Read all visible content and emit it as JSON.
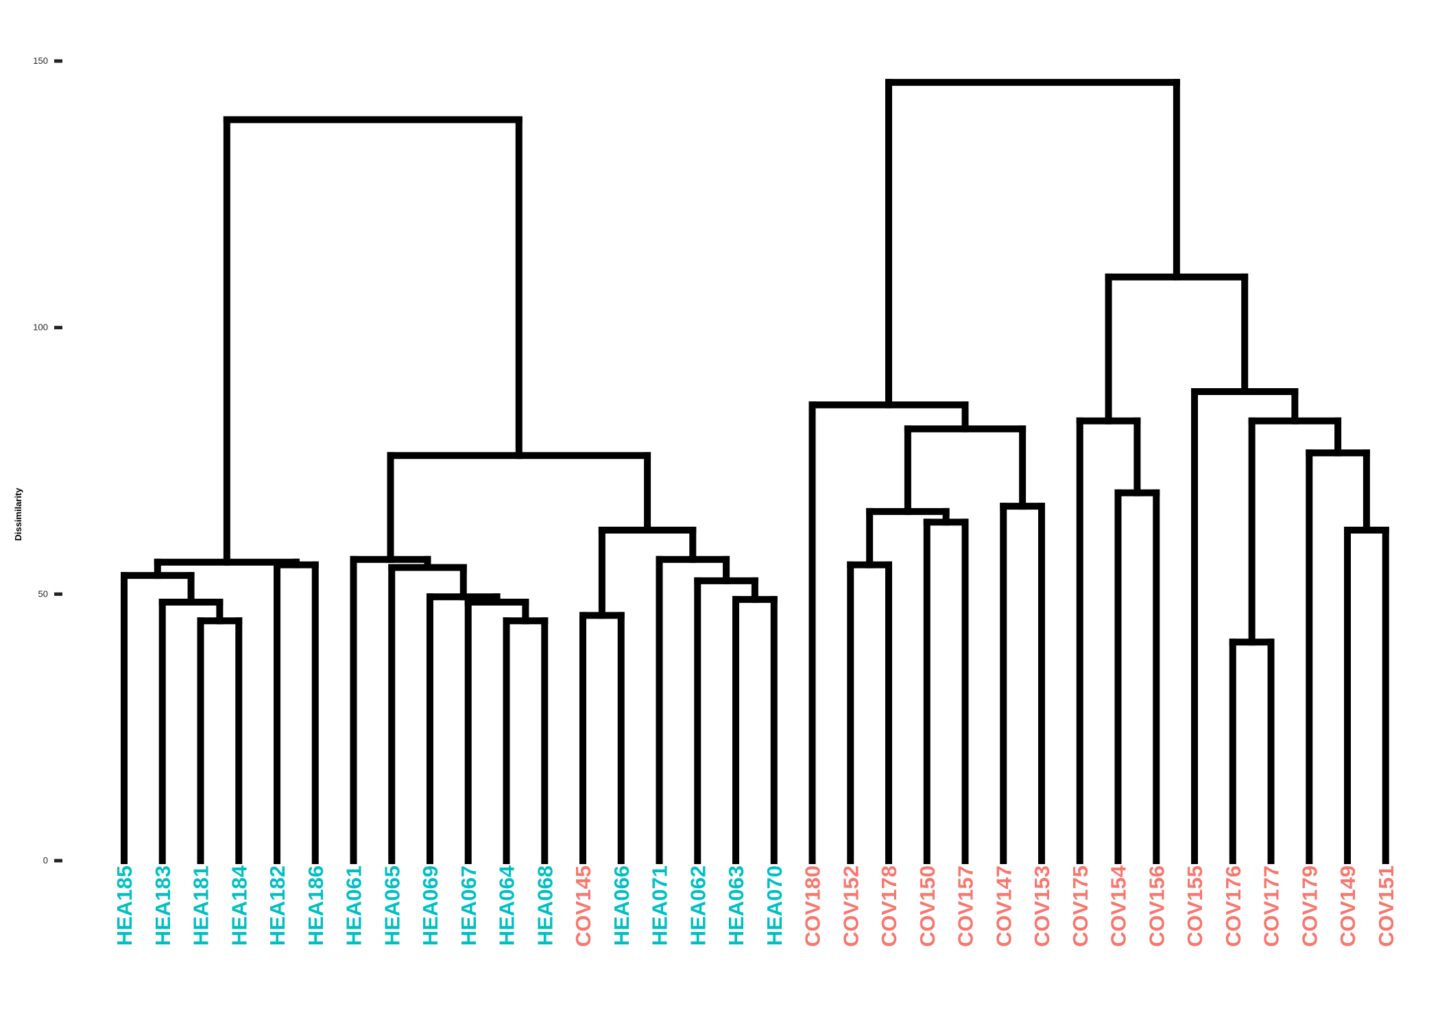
{
  "chart_data": {
    "type": "dendrogram",
    "ylabel": "Dissimilarity",
    "ylim": [
      0,
      150
    ],
    "yticks": [
      0,
      50,
      100,
      150
    ],
    "grid": false,
    "colors": {
      "HEA": "#00BFC4",
      "COV": "#F8766D",
      "branch": "#000000"
    },
    "leaves": [
      {
        "label": "HEA185",
        "group": "HEA"
      },
      {
        "label": "HEA183",
        "group": "HEA"
      },
      {
        "label": "HEA181",
        "group": "HEA"
      },
      {
        "label": "HEA184",
        "group": "HEA"
      },
      {
        "label": "HEA182",
        "group": "HEA"
      },
      {
        "label": "HEA186",
        "group": "HEA"
      },
      {
        "label": "HEA061",
        "group": "HEA"
      },
      {
        "label": "HEA065",
        "group": "HEA"
      },
      {
        "label": "HEA069",
        "group": "HEA"
      },
      {
        "label": "HEA067",
        "group": "HEA"
      },
      {
        "label": "HEA064",
        "group": "HEA"
      },
      {
        "label": "HEA068",
        "group": "HEA"
      },
      {
        "label": "COV145",
        "group": "COV"
      },
      {
        "label": "HEA066",
        "group": "HEA"
      },
      {
        "label": "HEA071",
        "group": "HEA"
      },
      {
        "label": "HEA062",
        "group": "HEA"
      },
      {
        "label": "HEA063",
        "group": "HEA"
      },
      {
        "label": "HEA070",
        "group": "HEA"
      },
      {
        "label": "COV180",
        "group": "COV"
      },
      {
        "label": "COV152",
        "group": "COV"
      },
      {
        "label": "COV178",
        "group": "COV"
      },
      {
        "label": "COV150",
        "group": "COV"
      },
      {
        "label": "COV157",
        "group": "COV"
      },
      {
        "label": "COV147",
        "group": "COV"
      },
      {
        "label": "COV153",
        "group": "COV"
      },
      {
        "label": "COV175",
        "group": "COV"
      },
      {
        "label": "COV154",
        "group": "COV"
      },
      {
        "label": "COV156",
        "group": "COV"
      },
      {
        "label": "COV155",
        "group": "COV"
      },
      {
        "label": "COV176",
        "group": "COV"
      },
      {
        "label": "COV177",
        "group": "COV"
      },
      {
        "label": "COV179",
        "group": "COV"
      },
      {
        "label": "COV149",
        "group": "COV"
      },
      {
        "label": "COV151",
        "group": "COV"
      }
    ],
    "merges": [
      {
        "id": "m01",
        "left": 2,
        "right": 3,
        "height": 45
      },
      {
        "id": "m02",
        "left": 1,
        "right": "m01",
        "height": 48.5
      },
      {
        "id": "m03",
        "left": 0,
        "right": "m02",
        "height": 53.5
      },
      {
        "id": "m04",
        "left": 4,
        "right": 5,
        "height": 55.5
      },
      {
        "id": "m05",
        "left": "m03",
        "right": "m04",
        "height": 56
      },
      {
        "id": "m06",
        "left": 10,
        "right": 11,
        "height": 45
      },
      {
        "id": "m07",
        "left": 9,
        "right": "m06",
        "height": 48.5
      },
      {
        "id": "m08",
        "left": 8,
        "right": "m07",
        "height": 49.5
      },
      {
        "id": "m09",
        "left": 7,
        "right": "m08",
        "height": 55
      },
      {
        "id": "m10",
        "left": 6,
        "right": "m09",
        "height": 56.5
      },
      {
        "id": "m11",
        "left": 12,
        "right": 13,
        "height": 46
      },
      {
        "id": "m12",
        "left": 16,
        "right": 17,
        "height": 49
      },
      {
        "id": "m13",
        "left": 15,
        "right": "m12",
        "height": 52.5
      },
      {
        "id": "m14",
        "left": 14,
        "right": "m13",
        "height": 56.5
      },
      {
        "id": "m15",
        "left": "m11",
        "right": "m14",
        "height": 62
      },
      {
        "id": "m16",
        "left": "m10",
        "right": "m15",
        "height": 76
      },
      {
        "id": "m17",
        "left": "m05",
        "right": "m16",
        "height": 139
      },
      {
        "id": "m18",
        "left": 19,
        "right": 20,
        "height": 55.5
      },
      {
        "id": "m19",
        "left": 21,
        "right": 22,
        "height": 63.5
      },
      {
        "id": "m20",
        "left": "m18",
        "right": "m19",
        "height": 65.5
      },
      {
        "id": "m21",
        "left": 23,
        "right": 24,
        "height": 66.5
      },
      {
        "id": "m22",
        "left": "m20",
        "right": "m21",
        "height": 81
      },
      {
        "id": "m23",
        "left": 18,
        "right": "m22",
        "height": 85.5
      },
      {
        "id": "m24",
        "left": 26,
        "right": 27,
        "height": 69
      },
      {
        "id": "m25",
        "left": 25,
        "right": "m24",
        "height": 82.5
      },
      {
        "id": "m26",
        "left": 29,
        "right": 30,
        "height": 41
      },
      {
        "id": "m27",
        "left": 32,
        "right": 33,
        "height": 62
      },
      {
        "id": "m28",
        "left": 31,
        "right": "m27",
        "height": 76.5
      },
      {
        "id": "m29",
        "left": "m26",
        "right": "m28",
        "height": 82.5
      },
      {
        "id": "m30",
        "left": 28,
        "right": "m29",
        "height": 88
      },
      {
        "id": "m31",
        "left": "m25",
        "right": "m30",
        "height": 109.5
      },
      {
        "id": "m32",
        "left": "m23",
        "right": "m31",
        "height": 146
      }
    ]
  }
}
